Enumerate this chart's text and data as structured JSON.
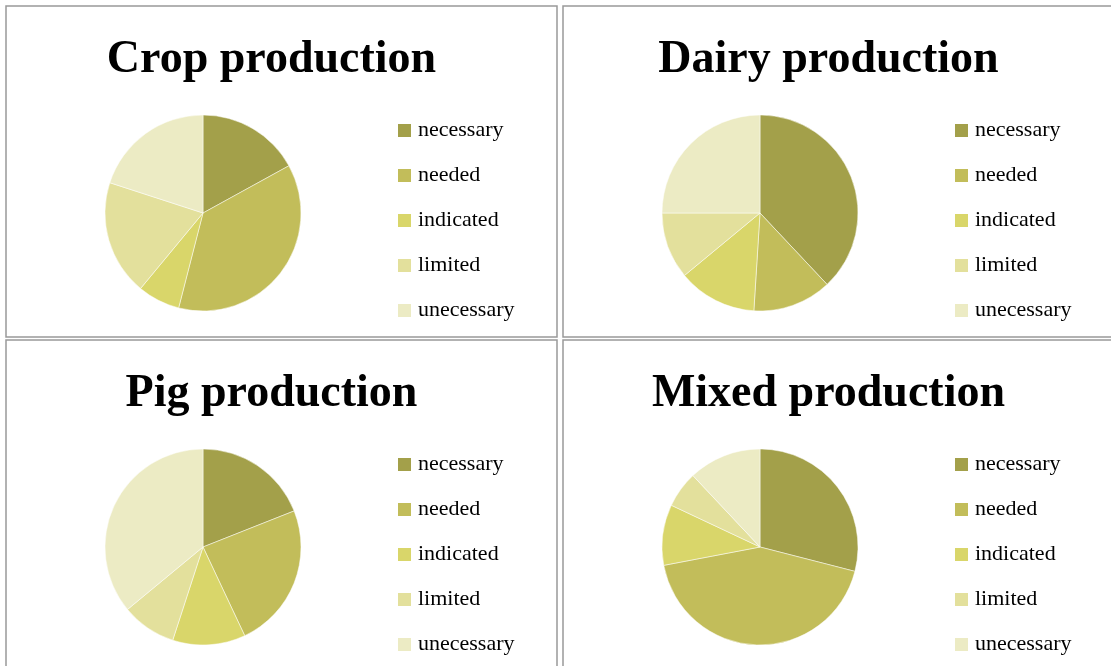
{
  "chart_data": [
    {
      "type": "pie",
      "title": "Crop production",
      "categories": [
        "necessary",
        "needed",
        "indicated",
        "limited",
        "unecessary"
      ],
      "values": [
        17,
        37,
        7,
        19,
        20
      ],
      "colors": [
        "#a3a04a",
        "#c2bd5a",
        "#d9d66a",
        "#e3e09c",
        "#ecebc4"
      ],
      "legend": "right"
    },
    {
      "type": "pie",
      "title": "Dairy production",
      "categories": [
        "necessary",
        "needed",
        "indicated",
        "limited",
        "unecessary"
      ],
      "values": [
        38,
        13,
        13,
        11,
        25
      ],
      "colors": [
        "#a3a04a",
        "#c2bd5a",
        "#d9d66a",
        "#e3e09c",
        "#ecebc4"
      ],
      "legend": "right"
    },
    {
      "type": "pie",
      "title": "Pig production",
      "categories": [
        "necessary",
        "needed",
        "indicated",
        "limited",
        "unecessary"
      ],
      "values": [
        19,
        24,
        12,
        9,
        36
      ],
      "colors": [
        "#a3a04a",
        "#c2bd5a",
        "#d9d66a",
        "#e3e09c",
        "#ecebc4"
      ],
      "legend": "right"
    },
    {
      "type": "pie",
      "title": "Mixed production",
      "categories": [
        "necessary",
        "needed",
        "indicated",
        "limited",
        "unecessary"
      ],
      "values": [
        29,
        43,
        10,
        6,
        12
      ],
      "colors": [
        "#a3a04a",
        "#c2bd5a",
        "#d9d66a",
        "#e3e09c",
        "#ecebc4"
      ],
      "legend": "right"
    }
  ]
}
